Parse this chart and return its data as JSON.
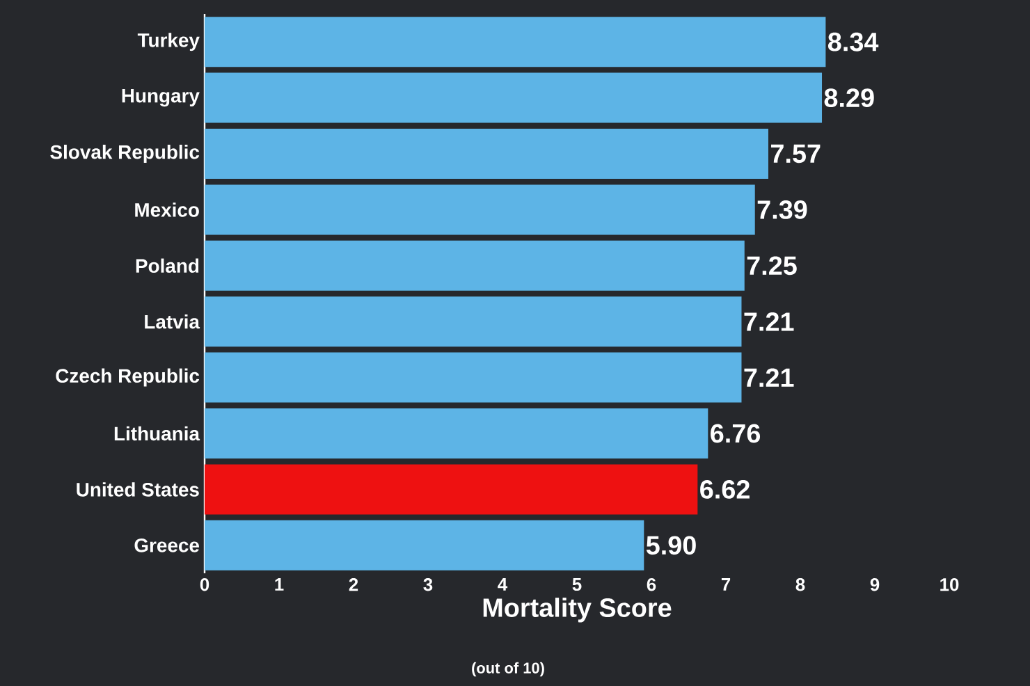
{
  "chart_data": {
    "type": "bar",
    "orientation": "horizontal",
    "xlabel": "Mortality Score",
    "annotations": [
      "(out of 10)"
    ],
    "categories": [
      "Turkey",
      "Hungary",
      "Slovak Republic",
      "Mexico",
      "Poland",
      "Latvia",
      "Czech Republic",
      "Lithuania",
      "United States",
      "Greece"
    ],
    "values": [
      8.34,
      8.29,
      7.57,
      7.39,
      7.25,
      7.21,
      7.21,
      6.76,
      6.62,
      5.9
    ],
    "value_labels": [
      "8.34",
      "8.29",
      "7.57",
      "7.39",
      "7.25",
      "7.21",
      "7.21",
      "6.76",
      "6.62",
      "5.90"
    ],
    "colors": [
      "#5db4e6",
      "#5db4e6",
      "#5db4e6",
      "#5db4e6",
      "#5db4e6",
      "#5db4e6",
      "#5db4e6",
      "#5db4e6",
      "#ee1111",
      "#5db4e6"
    ],
    "xlim": [
      0,
      10
    ],
    "xticks": [
      0,
      1,
      2,
      3,
      4,
      5,
      6,
      7,
      8,
      9,
      10
    ],
    "grid": false
  }
}
